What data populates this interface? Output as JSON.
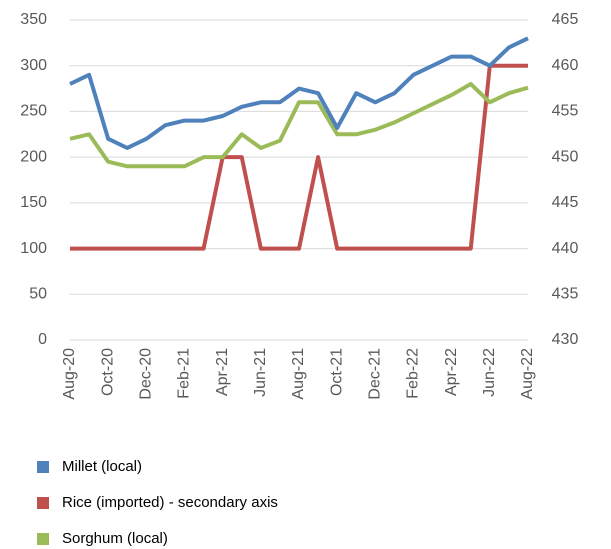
{
  "chart_data": {
    "type": "line",
    "categories": [
      "Aug-20",
      null,
      "Oct-20",
      null,
      "Dec-20",
      null,
      "Feb-21",
      null,
      "Apr-21",
      null,
      "Jun-21",
      null,
      "Aug-21",
      null,
      "Oct-21",
      null,
      "Dec-21",
      null,
      "Feb-22",
      null,
      "Apr-22",
      null,
      "Jun-22",
      null,
      "Aug-22"
    ],
    "series": [
      {
        "name": "Millet (local)",
        "color": "#4f81bd",
        "values": [
          280,
          290,
          220,
          210,
          220,
          235,
          240,
          240,
          245,
          255,
          260,
          260,
          275,
          270,
          232,
          270,
          260,
          270,
          290,
          300,
          310,
          310,
          300,
          320,
          330
        ]
      },
      {
        "name": "Rice (imported) - secondary axis",
        "color": "#c0504d",
        "axis": "y2",
        "values": [
          440,
          440,
          440,
          440,
          440,
          440,
          440,
          440,
          450,
          450,
          440,
          440,
          440,
          450,
          440,
          440,
          440,
          440,
          440,
          440,
          440,
          440,
          460,
          460,
          460
        ]
      },
      {
        "name": "Sorghum (local)",
        "color": "#9bbb59",
        "values": [
          220,
          225,
          195,
          190,
          190,
          190,
          190,
          200,
          200,
          225,
          210,
          218,
          260,
          260,
          225,
          225,
          230,
          238,
          248,
          258,
          268,
          280,
          260,
          270,
          276
        ]
      }
    ],
    "ylim": [
      0,
      350
    ],
    "yticks": [
      0,
      50,
      100,
      150,
      200,
      250,
      300,
      350
    ],
    "y2lim": [
      430,
      465
    ],
    "y2ticks": [
      430,
      435,
      440,
      445,
      450,
      455,
      460,
      465
    ],
    "grid": true,
    "legend": "bottom"
  }
}
